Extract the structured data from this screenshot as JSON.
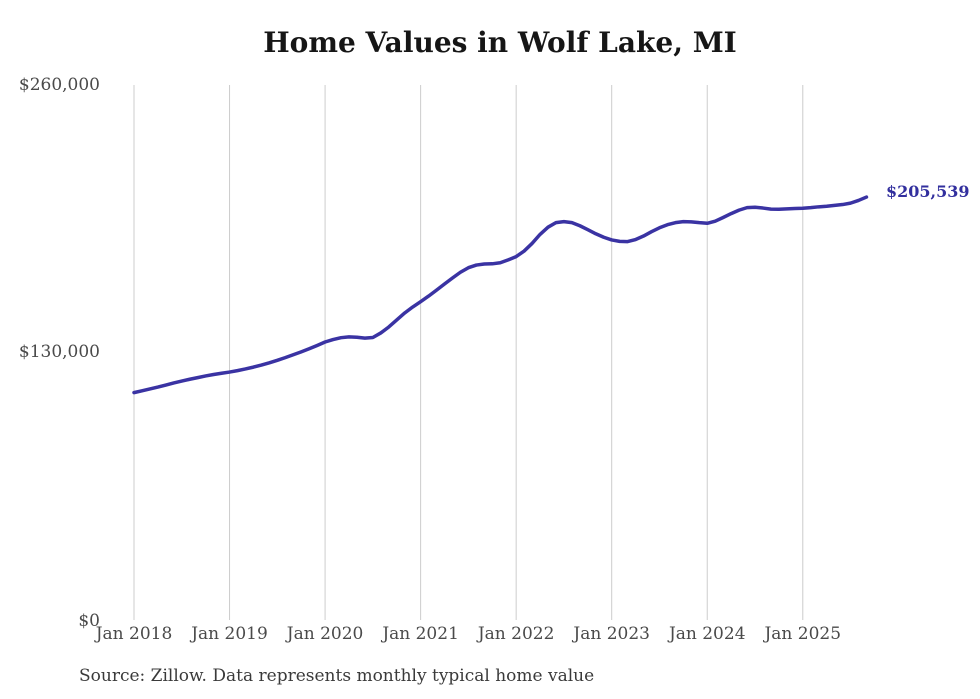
{
  "title": "Home Values in Wolf Lake, MI",
  "end_label": "$205,539",
  "source": "Source: Zillow. Data represents monthly typical home value",
  "colors": {
    "line": "#3a33a3",
    "end_label": "#322f9e",
    "grid": "#cccccc",
    "axis_text": "#4a4a4a",
    "title_text": "#161616",
    "source_text": "#3a3a3a"
  },
  "chart_data": {
    "type": "line",
    "title": "Home Values in Wolf Lake, MI",
    "series_name": "Monthly typical home value",
    "legend": "none",
    "grid": "vertical-only",
    "ylim": [
      0,
      260000
    ],
    "final_value": 205539,
    "y_ticks": [
      {
        "label": "$0",
        "value": 0
      },
      {
        "label": "$130,000",
        "value": 130000
      },
      {
        "label": "$260,000",
        "value": 260000
      }
    ],
    "x_ticks": [
      "Jan 2018",
      "Jan 2019",
      "Jan 2020",
      "Jan 2021",
      "Jan 2022",
      "Jan 2023",
      "Jan 2024",
      "Jan 2025"
    ],
    "months": [
      "Jan 2018",
      "Feb 2018",
      "Mar 2018",
      "Apr 2018",
      "May 2018",
      "Jun 2018",
      "Jul 2018",
      "Aug 2018",
      "Sep 2018",
      "Oct 2018",
      "Nov 2018",
      "Dec 2018",
      "Jan 2019",
      "Feb 2019",
      "Mar 2019",
      "Apr 2019",
      "May 2019",
      "Jun 2019",
      "Jul 2019",
      "Aug 2019",
      "Sep 2019",
      "Oct 2019",
      "Nov 2019",
      "Dec 2019",
      "Jan 2020",
      "Feb 2020",
      "Mar 2020",
      "Apr 2020",
      "May 2020",
      "Jun 2020",
      "Jul 2020",
      "Aug 2020",
      "Sep 2020",
      "Oct 2020",
      "Nov 2020",
      "Dec 2020",
      "Jan 2021",
      "Feb 2021",
      "Mar 2021",
      "Apr 2021",
      "May 2021",
      "Jun 2021",
      "Jul 2021",
      "Aug 2021",
      "Sep 2021",
      "Oct 2021",
      "Nov 2021",
      "Dec 2021",
      "Jan 2022",
      "Feb 2022",
      "Mar 2022",
      "Apr 2022",
      "May 2022",
      "Jun 2022",
      "Jul 2022",
      "Aug 2022",
      "Sep 2022",
      "Oct 2022",
      "Nov 2022",
      "Dec 2022",
      "Jan 2023",
      "Feb 2023",
      "Mar 2023",
      "Apr 2023",
      "May 2023",
      "Jun 2023",
      "Jul 2023",
      "Aug 2023",
      "Sep 2023",
      "Oct 2023",
      "Nov 2023",
      "Dec 2023",
      "Jan 2024",
      "Feb 2024",
      "Mar 2024",
      "Apr 2024",
      "May 2024",
      "Jun 2024",
      "Jul 2024",
      "Aug 2024",
      "Sep 2024",
      "Oct 2024",
      "Nov 2024",
      "Dec 2024",
      "Jan 2025",
      "Feb 2025",
      "Mar 2025",
      "Apr 2025",
      "May 2025",
      "Jun 2025",
      "Jul 2025",
      "Aug 2025",
      "Sep 2025"
    ],
    "values": [
      110500,
      111400,
      112300,
      113200,
      114200,
      115200,
      116100,
      117000,
      117800,
      118600,
      119300,
      119900,
      120500,
      121200,
      122000,
      122900,
      123900,
      125000,
      126200,
      127500,
      128900,
      130300,
      131800,
      133400,
      135100,
      136300,
      137200,
      137600,
      137400,
      137000,
      137300,
      139500,
      142400,
      145800,
      149200,
      152100,
      154700,
      157400,
      160300,
      163300,
      166200,
      169000,
      171200,
      172500,
      173000,
      173100,
      173600,
      175000,
      176600,
      179300,
      183000,
      187400,
      190900,
      193100,
      193600,
      193100,
      191600,
      189700,
      187700,
      186000,
      184700,
      184000,
      183900,
      184900,
      186600,
      188700,
      190600,
      192100,
      193100,
      193600,
      193500,
      193100,
      192800,
      193800,
      195600,
      197500,
      199200,
      200400,
      200600,
      200200,
      199700,
      199600,
      199800,
      200000,
      200100,
      200400,
      200800,
      201100,
      201500,
      201900,
      202600,
      203900,
      205539
    ]
  }
}
